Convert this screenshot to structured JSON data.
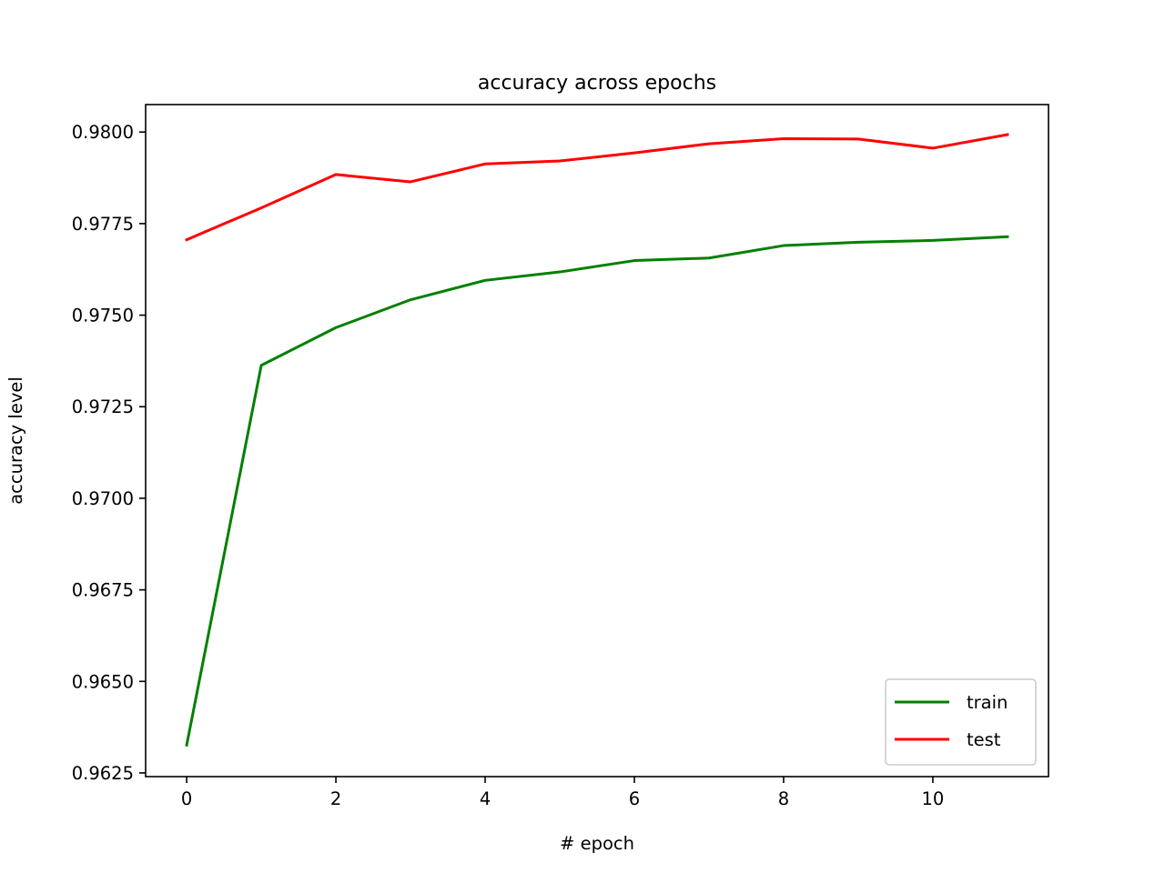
{
  "chart_data": {
    "type": "line",
    "title": "accuracy across epochs",
    "xlabel": "# epoch",
    "ylabel": "accuracy level",
    "x": [
      0,
      1,
      2,
      3,
      4,
      5,
      6,
      7,
      8,
      9,
      10,
      11
    ],
    "xlim": [
      -0.55,
      11.55
    ],
    "ylim": [
      0.9624,
      0.98075
    ],
    "xticks": [
      0,
      2,
      4,
      6,
      8,
      10
    ],
    "xtick_labels": [
      "0",
      "2",
      "4",
      "6",
      "8",
      "10"
    ],
    "yticks": [
      0.9625,
      0.965,
      0.9675,
      0.97,
      0.9725,
      0.975,
      0.9775,
      0.98
    ],
    "ytick_labels": [
      "0.9625",
      "0.9650",
      "0.9675",
      "0.9700",
      "0.9725",
      "0.9750",
      "0.9775",
      "0.9800"
    ],
    "grid": false,
    "legend_position": "lower-right",
    "series": [
      {
        "name": "train",
        "color": "#008000",
        "values": [
          0.96326,
          0.97363,
          0.97466,
          0.97542,
          0.97595,
          0.97618,
          0.97649,
          0.97656,
          0.9769,
          0.97699,
          0.97704,
          0.97714
        ]
      },
      {
        "name": "test",
        "color": "#ff0000",
        "values": [
          0.97706,
          0.97793,
          0.97884,
          0.97864,
          0.97913,
          0.97921,
          0.97943,
          0.97968,
          0.97982,
          0.97981,
          0.97956,
          0.97993
        ]
      }
    ]
  }
}
